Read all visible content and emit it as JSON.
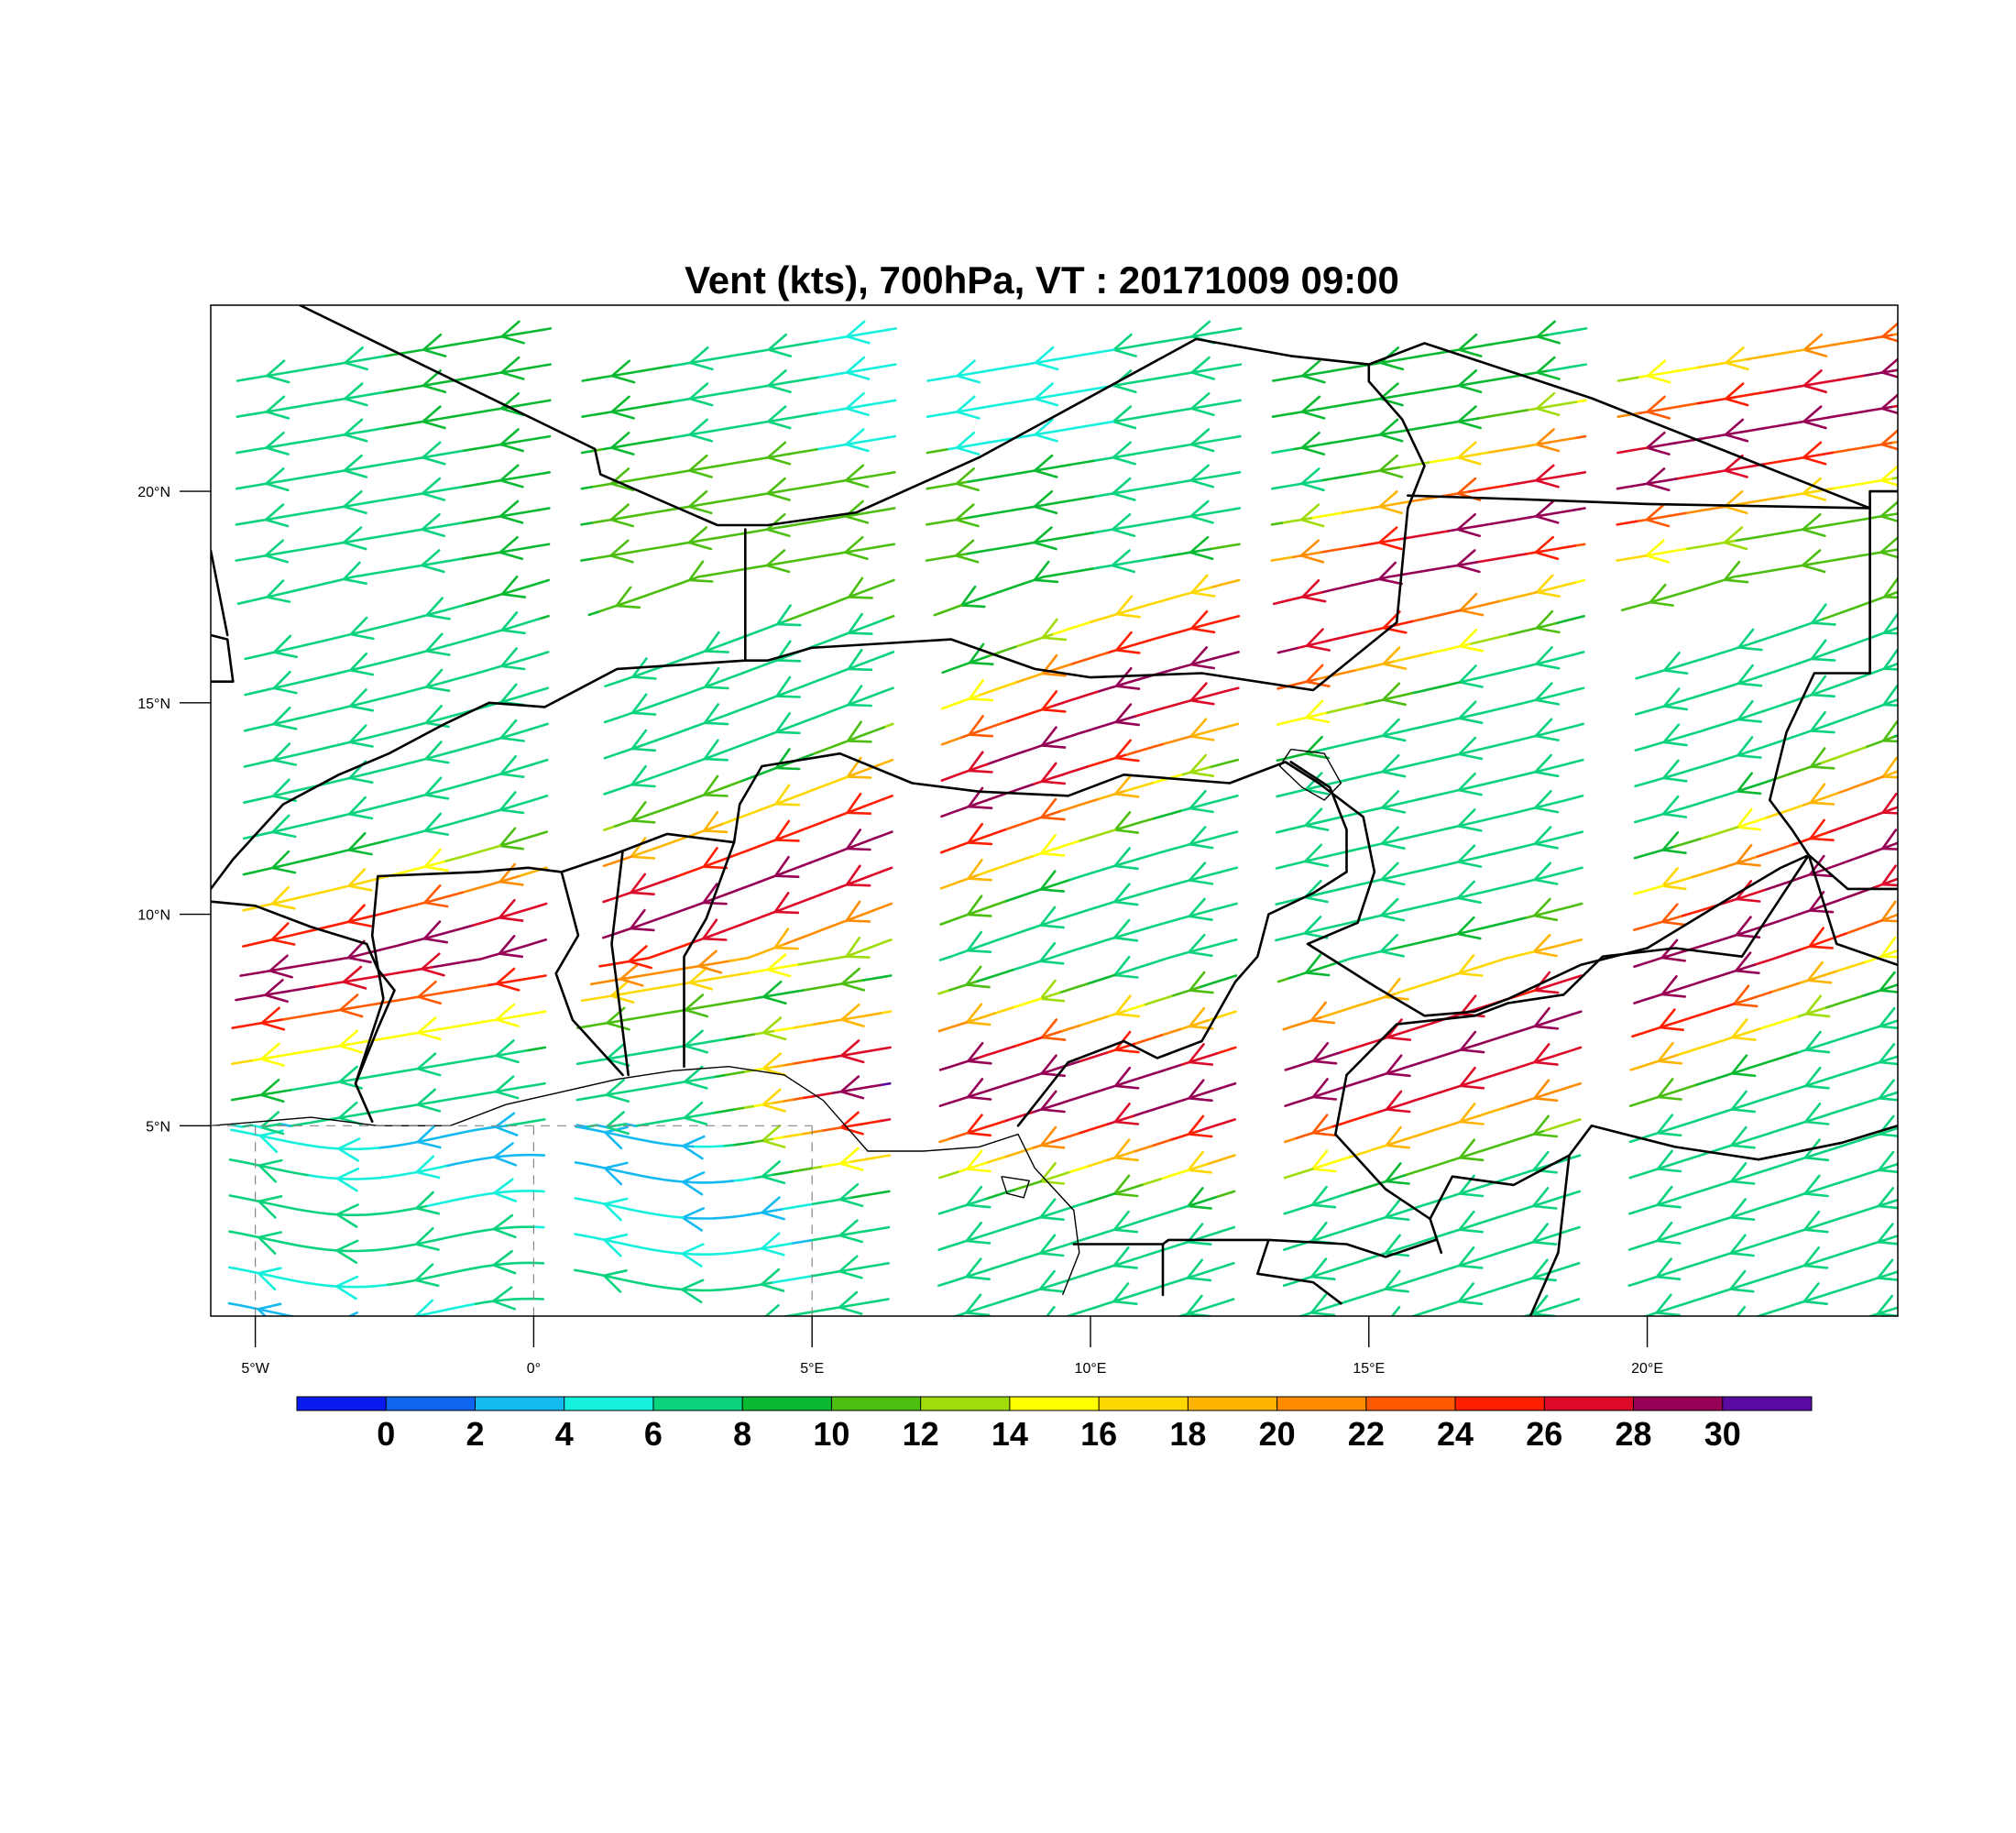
{
  "title": "Vent (kts), 700hPa, VT : 20171009  09:00",
  "map": {
    "projection": "lat-lon",
    "lon_range": [
      -5.8,
      24.5
    ],
    "lat_range": [
      0.5,
      24.4
    ],
    "x_ticks": [
      {
        "value": -5,
        "label": "5°W"
      },
      {
        "value": 0,
        "label": "0°"
      },
      {
        "value": 5,
        "label": "5°E"
      },
      {
        "value": 10,
        "label": "10°E"
      },
      {
        "value": 15,
        "label": "15°E"
      },
      {
        "value": 20,
        "label": "20°E"
      }
    ],
    "y_ticks": [
      {
        "value": 5,
        "label": "5°N"
      },
      {
        "value": 10,
        "label": "10°N"
      },
      {
        "value": 15,
        "label": "15°N"
      },
      {
        "value": 20,
        "label": "20°N"
      }
    ]
  },
  "colorbar": {
    "colors": [
      "#0a19f0",
      "#0f64f0",
      "#14b9f0",
      "#14f0dc",
      "#0ad27d",
      "#0ab932",
      "#4bbe0f",
      "#a0dc0a",
      "#ffff00",
      "#ffd700",
      "#ffb400",
      "#ff8c00",
      "#ff5a00",
      "#ff1e00",
      "#dc0a28",
      "#960055",
      "#5a0aa0"
    ],
    "labels": [
      "0",
      "2",
      "4",
      "6",
      "8",
      "10",
      "12",
      "14",
      "16",
      "18",
      "20",
      "22",
      "24",
      "26",
      "28",
      "30"
    ],
    "units": "kts"
  },
  "wind_field": {
    "level": "700hPa",
    "valid_time": "20171009  09:00",
    "jets": [
      {
        "name": "",
        "speed_kts": 29,
        "path_lonlat": [
          [
            -5.8,
            8.2
          ],
          [
            -3,
            9.0
          ],
          [
            0,
            9.5
          ],
          [
            3,
            10.2
          ],
          [
            6,
            11.5
          ],
          [
            9,
            13.6
          ],
          [
            11,
            15.4
          ],
          [
            13,
            16.3
          ],
          [
            15,
            17.6
          ],
          [
            18,
            19.5
          ],
          [
            21,
            21.0
          ],
          [
            24.5,
            22.5
          ]
        ]
      },
      {
        "name": "",
        "speed_kts": 30,
        "path_lonlat": [
          [
            6,
            6.0
          ],
          [
            9,
            6.0
          ],
          [
            12,
            5.8
          ],
          [
            15,
            6.2
          ],
          [
            18,
            7.2
          ],
          [
            21,
            8.8
          ],
          [
            24.5,
            11.8
          ]
        ]
      }
    ]
  }
}
